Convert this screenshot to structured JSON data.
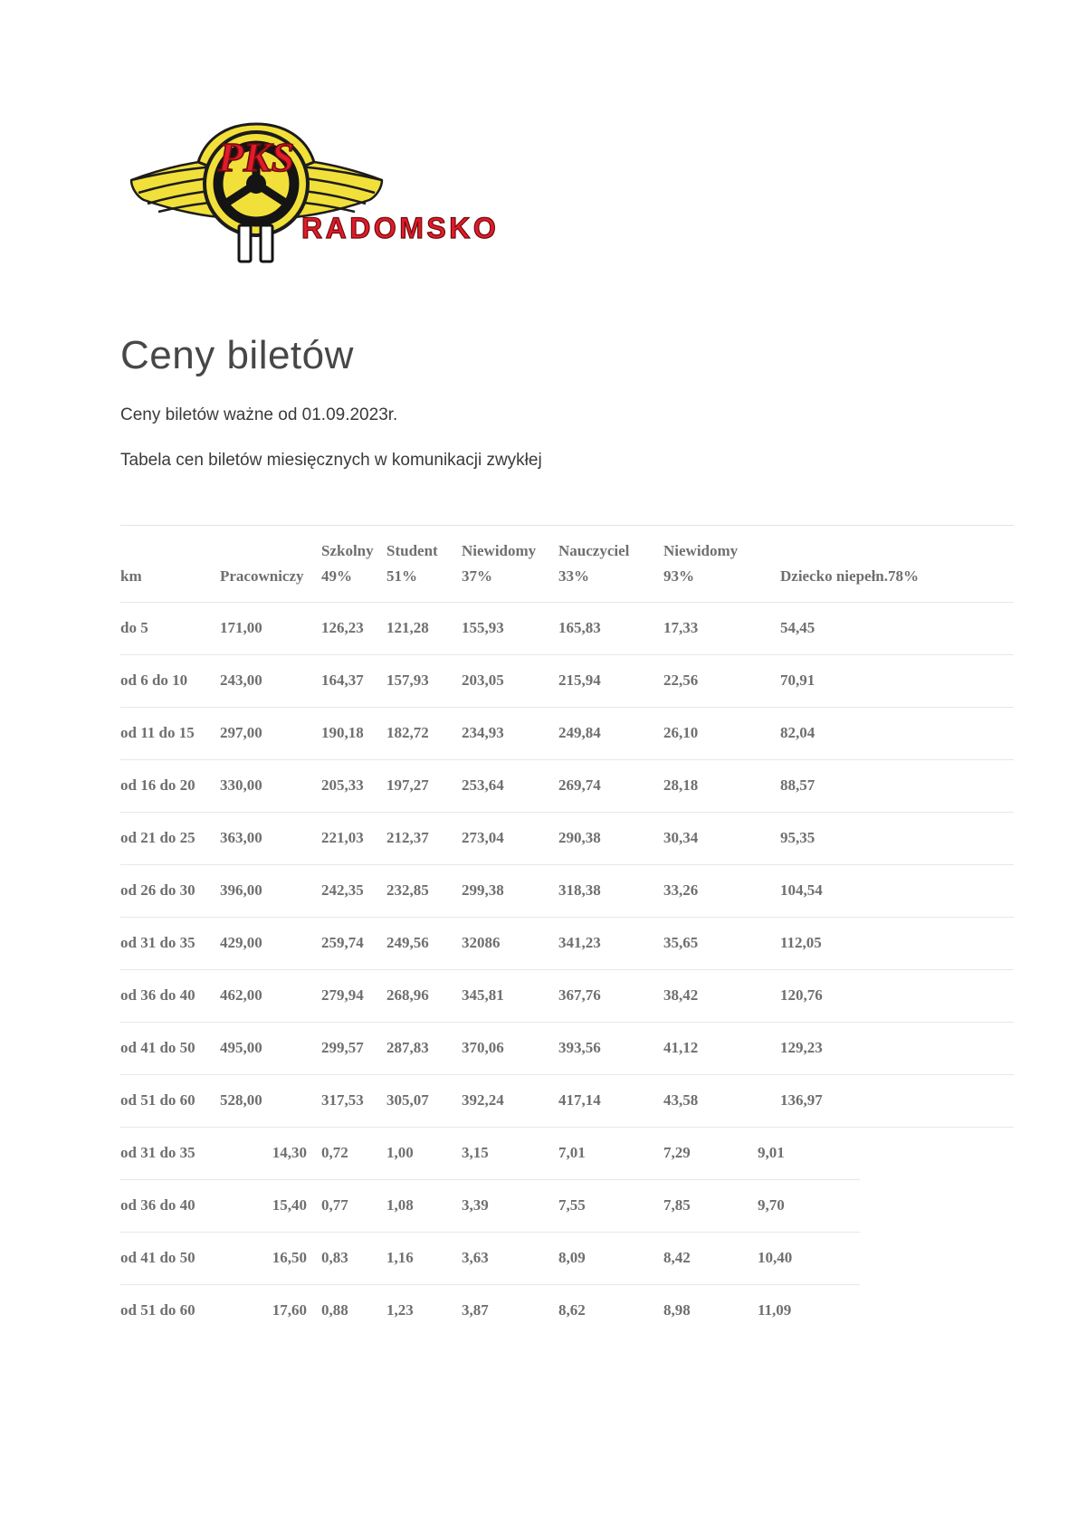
{
  "logo": {
    "name": "pks-radomsko-logo",
    "badge_text": "PKS",
    "city_text": "RADOMSKO",
    "colors": {
      "yellow": "#f2e03a",
      "red": "#d8232a",
      "dark": "#1c1c1c",
      "text_red": "#e01b2a"
    }
  },
  "page": {
    "title": "Ceny biletów",
    "subtitle": "Ceny biletów ważne od 01.09.2023r.",
    "table_caption": "Tabela cen biletów miesięcznych w komunikacji zwykłej"
  },
  "table": {
    "header_row1": [
      "",
      "",
      "Szkolny",
      "Student",
      "Niewidomy",
      "Nauczyciel",
      "Niewidomy",
      ""
    ],
    "header_row2": [
      "km",
      "Pracowniczy",
      "49%",
      "51%",
      "37%",
      "33%",
      "93%",
      "Dziecko niepełn.78%"
    ],
    "rows_monthly": [
      [
        "do 5",
        "171,00",
        "126,23",
        "121,28",
        "155,93",
        "165,83",
        "17,33",
        "54,45"
      ],
      [
        "od 6 do 10",
        "243,00",
        "164,37",
        "157,93",
        "203,05",
        "215,94",
        "22,56",
        "70,91"
      ],
      [
        "od 11 do 15",
        "297,00",
        "190,18",
        "182,72",
        "234,93",
        "249,84",
        "26,10",
        "82,04"
      ],
      [
        "od 16 do 20",
        "330,00",
        "205,33",
        "197,27",
        "253,64",
        "269,74",
        "28,18",
        "88,57"
      ],
      [
        "od 21 do 25",
        "363,00",
        "221,03",
        "212,37",
        "273,04",
        "290,38",
        "30,34",
        "95,35"
      ],
      [
        "od 26 do 30",
        "396,00",
        "242,35",
        "232,85",
        "299,38",
        "318,38",
        "33,26",
        "104,54"
      ],
      [
        "od 31 do 35",
        "429,00",
        "259,74",
        "249,56",
        "32086",
        "341,23",
        "35,65",
        "112,05"
      ],
      [
        "od 36 do 40",
        "462,00",
        "279,94",
        "268,96",
        "345,81",
        "367,76",
        "38,42",
        "120,76"
      ],
      [
        "od 41 do 50",
        "495,00",
        "299,57",
        "287,83",
        "370,06",
        "393,56",
        "41,12",
        "129,23"
      ],
      [
        "od 51 do 60",
        "528,00",
        "317,53",
        "305,07",
        "392,24",
        "417,14",
        "43,58",
        "136,97"
      ]
    ],
    "rows_single": [
      [
        "od 31 do 35",
        "14,30",
        "0,72",
        "1,00",
        "3,15",
        "7,01",
        "7,29",
        "9,01"
      ],
      [
        "od 36 do 40",
        "15,40",
        "0,77",
        "1,08",
        "3,39",
        "7,55",
        "7,85",
        "9,70"
      ],
      [
        "od 41 do 50",
        "16,50",
        "0,83",
        "1,16",
        "3,63",
        "8,09",
        "8,42",
        "10,40"
      ],
      [
        "od 51 do 60",
        "17,60",
        "0,88",
        "1,23",
        "3,87",
        "8,62",
        "8,98",
        "11,09"
      ]
    ]
  }
}
